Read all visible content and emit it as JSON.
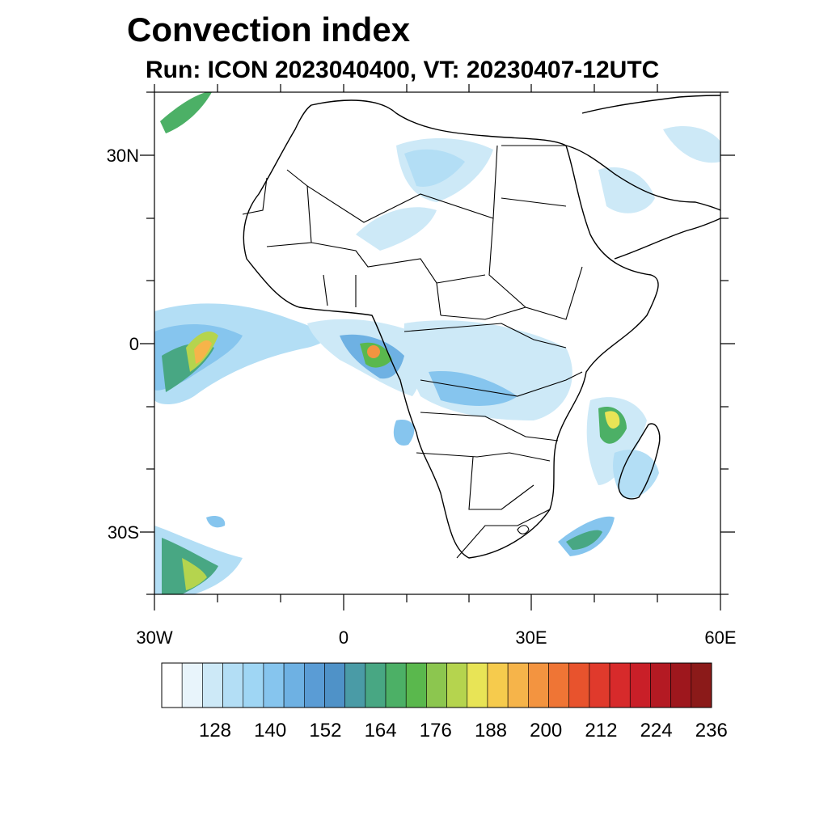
{
  "title": "Convection index",
  "subtitle": "Run: ICON 2023040400,  VT: 20230407-12UTC",
  "map": {
    "lat_labels": [
      "30N",
      "0",
      "30S"
    ],
    "lon_labels": [
      "30W",
      "0",
      "30E",
      "60E"
    ],
    "extent_lon": [
      -30,
      60
    ],
    "extent_lat": [
      -40,
      40
    ]
  },
  "colorbar": {
    "labels": [
      "128",
      "140",
      "152",
      "164",
      "176",
      "188",
      "200",
      "212",
      "224",
      "236"
    ],
    "colors": [
      "#ffffff",
      "#e8f4fb",
      "#cde9f7",
      "#b3def5",
      "#9fd6f4",
      "#86c5ee",
      "#6eb1e3",
      "#5a9cd5",
      "#4f92c8",
      "#4a9ba6",
      "#48a783",
      "#4cb066",
      "#5ab84d",
      "#8cc64f",
      "#b5d44e",
      "#e8e456",
      "#f6cb4d",
      "#f6b44a",
      "#f39440",
      "#ef7535",
      "#e8532d",
      "#e03a2c",
      "#d72a2b",
      "#c91f28",
      "#b41a23",
      "#9e171d",
      "#8b1a19"
    ]
  }
}
